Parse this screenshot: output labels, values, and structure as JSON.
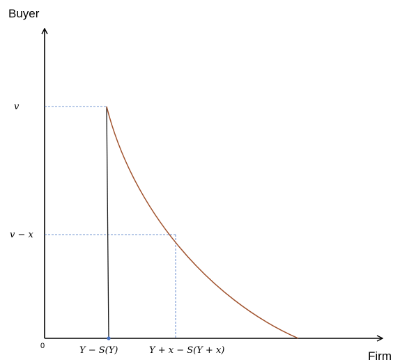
{
  "axes": {
    "y_title": "Buyer",
    "x_title": "Firm",
    "origin_label": "0"
  },
  "y_labels": {
    "v": "v",
    "v_minus_x": "v − x"
  },
  "x_labels": {
    "y_minus_s": "Y − S(Y)",
    "y_plus_x_minus_s": "Y + x − S(Y + x)"
  },
  "colors": {
    "axis": "#000000",
    "curve": "#a0522d",
    "guide": "#4472c4",
    "vertical_line": "#1a1a1a",
    "marker": "#4472c4"
  }
}
